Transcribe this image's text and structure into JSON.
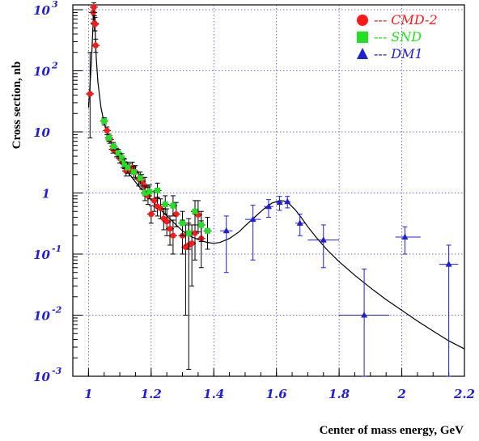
{
  "chart_data": {
    "type": "scatter",
    "xlabel": "Center of mass energy, GeV",
    "ylabel": "Cross section, nb",
    "xlim": [
      0.95,
      2.2
    ],
    "ylim": [
      0.001,
      1200
    ],
    "yscale": "log",
    "grid": true,
    "legend_position": "top-right",
    "x_ticks": [
      {
        "value": 1.0,
        "label": "1"
      },
      {
        "value": 1.2,
        "label": "1.2"
      },
      {
        "value": 1.4,
        "label": "1.4"
      },
      {
        "value": 1.6,
        "label": "1.6"
      },
      {
        "value": 1.8,
        "label": "1.8"
      },
      {
        "value": 2.0,
        "label": "2"
      },
      {
        "value": 2.2,
        "label": "2.2"
      }
    ],
    "y_ticks": [
      {
        "value": 0.001,
        "base": "10",
        "exp": "-3"
      },
      {
        "value": 0.01,
        "base": "10",
        "exp": "-2"
      },
      {
        "value": 0.1,
        "base": "10",
        "exp": "-1"
      },
      {
        "value": 1,
        "base": "1",
        "exp": ""
      },
      {
        "value": 10,
        "base": "10",
        "exp": ""
      },
      {
        "value": 100,
        "base": "10",
        "exp": "2"
      },
      {
        "value": 1000,
        "base": "10",
        "exp": "3"
      }
    ],
    "series": [
      {
        "name": "--- CMD-2",
        "marker": "circle",
        "color": "#ff1a1a",
        "points": [
          [
            1.005,
            42,
            8,
            200
          ],
          [
            1.015,
            900,
            700,
            1100
          ],
          [
            1.017,
            1100,
            900,
            1300
          ],
          [
            1.019,
            600,
            450,
            800
          ],
          [
            1.021,
            580,
            450,
            750
          ],
          [
            1.023,
            260,
            200,
            330
          ],
          [
            1.059,
            10.5,
            9,
            12
          ],
          [
            1.068,
            7.5,
            6.5,
            8.7
          ],
          [
            1.078,
            5.2,
            4.5,
            6
          ],
          [
            1.09,
            4.6,
            3.9,
            5.4
          ],
          [
            1.1,
            3.7,
            3.1,
            4.4
          ],
          [
            1.11,
            3.1,
            2.6,
            3.7
          ],
          [
            1.12,
            2.3,
            1.9,
            2.8
          ],
          [
            1.13,
            2.4,
            1.9,
            3.0
          ],
          [
            1.14,
            2.6,
            2.1,
            3.2
          ],
          [
            1.15,
            2.2,
            1.7,
            2.8
          ],
          [
            1.16,
            1.7,
            1.3,
            2.2
          ],
          [
            1.17,
            1.55,
            1.15,
            2.0
          ],
          [
            1.18,
            1.3,
            0.9,
            1.8
          ],
          [
            1.19,
            0.9,
            0.65,
            1.25
          ],
          [
            1.2,
            0.45,
            0.32,
            0.62
          ],
          [
            1.21,
            0.75,
            0.5,
            1.05
          ],
          [
            1.22,
            0.6,
            0.42,
            0.85
          ],
          [
            1.23,
            0.56,
            0.38,
            0.8
          ],
          [
            1.24,
            0.38,
            0.25,
            0.55
          ],
          [
            1.25,
            0.34,
            0.2,
            0.55
          ],
          [
            1.26,
            0.26,
            0.14,
            0.42
          ],
          [
            1.27,
            0.2,
            0.1,
            0.36
          ],
          [
            1.28,
            0.45,
            0.28,
            0.7
          ],
          [
            1.3,
            0.2,
            0.1,
            0.36
          ],
          [
            1.31,
            0.13,
            0.01,
            0.3
          ],
          [
            1.32,
            0.14,
            0.0013,
            0.32
          ],
          [
            1.33,
            0.15,
            0.03,
            0.3
          ],
          [
            1.34,
            0.22,
            0.08,
            0.45
          ],
          [
            1.35,
            0.44,
            0.23,
            0.75
          ],
          [
            1.36,
            0.18,
            0.06,
            0.35
          ]
        ]
      },
      {
        "name": "--- SND",
        "marker": "square",
        "color": "#22e022",
        "points": [
          [
            1.05,
            15,
            13,
            17
          ],
          [
            1.065,
            8.0,
            7,
            9.2
          ],
          [
            1.08,
            5.8,
            5,
            6.7
          ],
          [
            1.095,
            4.5,
            3.9,
            5.2
          ],
          [
            1.107,
            3.7,
            3.1,
            4.4
          ],
          [
            1.115,
            3.0,
            2.5,
            3.6
          ],
          [
            1.125,
            2.6,
            2.1,
            3.2
          ],
          [
            1.145,
            2.2,
            1.8,
            2.7
          ],
          [
            1.165,
            1.75,
            1.4,
            2.2
          ],
          [
            1.18,
            1.0,
            0.75,
            1.3
          ],
          [
            1.195,
            1.05,
            0.8,
            1.35
          ],
          [
            1.22,
            1.1,
            0.82,
            1.45
          ],
          [
            1.245,
            0.65,
            0.45,
            0.9
          ],
          [
            1.27,
            0.62,
            0.42,
            0.9
          ],
          [
            1.3,
            0.32,
            0.2,
            0.5
          ],
          [
            1.32,
            0.22,
            0.12,
            0.38
          ],
          [
            1.34,
            0.5,
            0.3,
            0.75
          ],
          [
            1.36,
            0.3,
            0.16,
            0.5
          ],
          [
            1.38,
            0.24,
            0.12,
            0.4
          ]
        ]
      },
      {
        "name": "--- DM1",
        "marker": "triangle",
        "color": "#1f1fd6",
        "points": [
          [
            1.44,
            0.24,
            0.05,
            0.42,
            1.42,
            1.46
          ],
          [
            1.525,
            0.37,
            0.08,
            0.63,
            1.5,
            1.55
          ],
          [
            1.575,
            0.6,
            0.4,
            0.78,
            1.56,
            1.59
          ],
          [
            1.61,
            0.7,
            0.52,
            0.88,
            1.6,
            1.62
          ],
          [
            1.635,
            0.72,
            0.57,
            0.88,
            1.625,
            1.645
          ],
          [
            1.675,
            0.32,
            0.2,
            0.45,
            1.66,
            1.69
          ],
          [
            1.75,
            0.17,
            0.06,
            0.3,
            1.7,
            1.8
          ],
          [
            1.88,
            0.01,
            0.001,
            0.057,
            1.8,
            1.96
          ],
          [
            2.01,
            0.19,
            0.1,
            0.28,
            1.98,
            2.06
          ],
          [
            2.15,
            0.068,
            0.001,
            0.14,
            2.12,
            2.18
          ]
        ]
      }
    ],
    "fit_curve": [
      [
        1.0,
        25
      ],
      [
        1.005,
        60
      ],
      [
        1.01,
        160
      ],
      [
        1.014,
        500
      ],
      [
        1.0175,
        1200
      ],
      [
        1.021,
        500
      ],
      [
        1.025,
        160
      ],
      [
        1.03,
        65
      ],
      [
        1.04,
        25
      ],
      [
        1.05,
        14
      ],
      [
        1.06,
        9.5
      ],
      [
        1.07,
        7
      ],
      [
        1.08,
        5.3
      ],
      [
        1.09,
        4.3
      ],
      [
        1.1,
        3.5
      ],
      [
        1.12,
        2.4
      ],
      [
        1.14,
        1.75
      ],
      [
        1.16,
        1.3
      ],
      [
        1.18,
        1.0
      ],
      [
        1.2,
        0.78
      ],
      [
        1.22,
        0.6
      ],
      [
        1.25,
        0.42
      ],
      [
        1.28,
        0.3
      ],
      [
        1.3,
        0.24
      ],
      [
        1.33,
        0.19
      ],
      [
        1.36,
        0.165
      ],
      [
        1.38,
        0.155
      ],
      [
        1.4,
        0.15
      ],
      [
        1.42,
        0.155
      ],
      [
        1.45,
        0.18
      ],
      [
        1.48,
        0.23
      ],
      [
        1.5,
        0.29
      ],
      [
        1.53,
        0.4
      ],
      [
        1.56,
        0.55
      ],
      [
        1.585,
        0.68
      ],
      [
        1.61,
        0.75
      ],
      [
        1.625,
        0.74
      ],
      [
        1.64,
        0.67
      ],
      [
        1.66,
        0.53
      ],
      [
        1.68,
        0.39
      ],
      [
        1.7,
        0.28
      ],
      [
        1.73,
        0.18
      ],
      [
        1.76,
        0.12
      ],
      [
        1.8,
        0.075
      ],
      [
        1.85,
        0.045
      ],
      [
        1.9,
        0.028
      ],
      [
        1.95,
        0.018
      ],
      [
        2.0,
        0.012
      ],
      [
        2.05,
        0.008
      ],
      [
        2.1,
        0.0055
      ],
      [
        2.15,
        0.0038
      ],
      [
        2.2,
        0.0028
      ]
    ]
  }
}
